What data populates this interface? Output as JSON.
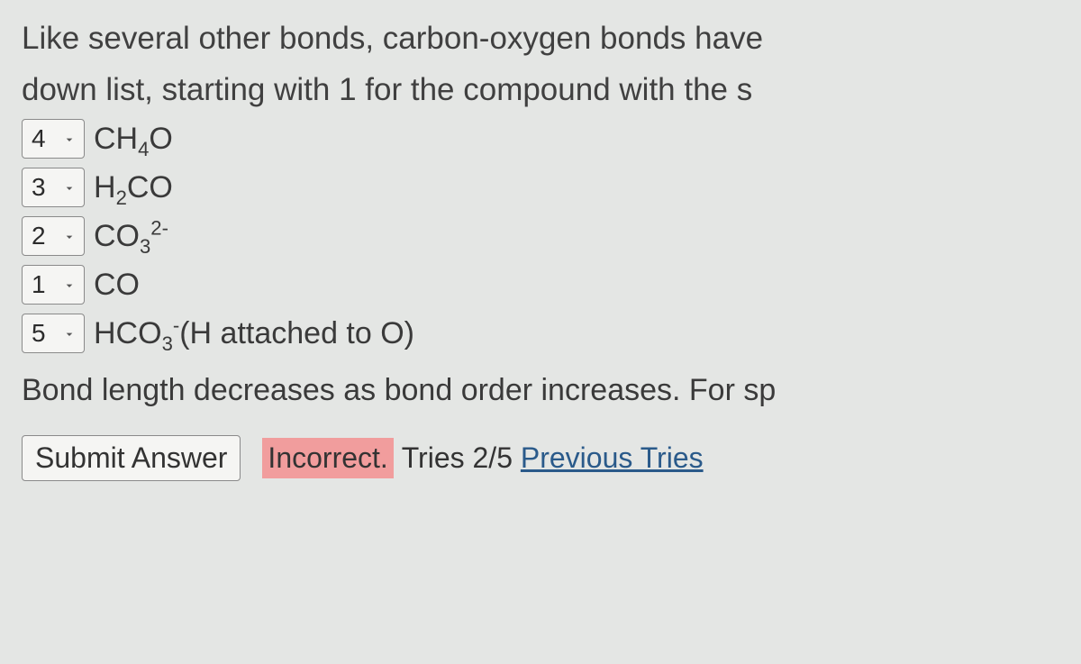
{
  "question": {
    "line1": "Like several other bonds, carbon-oxygen bonds have",
    "line2": "down list, starting with 1 for the compound with the s"
  },
  "items": [
    {
      "value": "4",
      "formula_html": "CH<sub>4</sub>O"
    },
    {
      "value": "3",
      "formula_html": "H<sub>2</sub>CO"
    },
    {
      "value": "2",
      "formula_html": "CO<sub>3</sub><sup>2-</sup>"
    },
    {
      "value": "1",
      "formula_html": "CO"
    },
    {
      "value": "5",
      "formula_html": "HCO<sub>3</sub><sup>-</sup>(H attached to O)"
    }
  ],
  "feedback_line": "Bond length decreases as bond order increases. For sp",
  "submit_label": "Submit Answer",
  "result": {
    "status": "Incorrect.",
    "tries_text": "Tries 2/5",
    "previous_link": "Previous Tries"
  },
  "colors": {
    "background": "#e4e6e4",
    "text": "#3a3a3a",
    "select_bg": "#f5f5f3",
    "select_border": "#8a8a8a",
    "incorrect_bg": "#f19d9d",
    "link": "#2a5a8a"
  }
}
